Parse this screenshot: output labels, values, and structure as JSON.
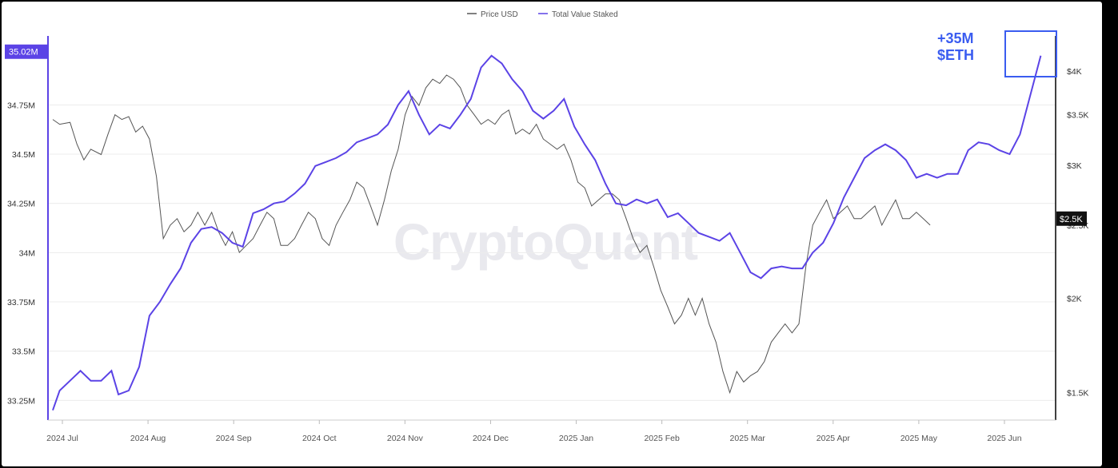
{
  "chart_data": {
    "type": "line",
    "watermark": "CryptoQuant",
    "legend": [
      {
        "name": "Price USD",
        "color": "#555555"
      },
      {
        "name": "Total Value Staked",
        "color": "#5b43e6"
      }
    ],
    "annotation": {
      "line1": "+35M",
      "line2": "$ETH",
      "color": "#3a5cf0"
    },
    "x_ticks": [
      "2024 Jul",
      "2024 Aug",
      "2024 Sep",
      "2024 Oct",
      "2024 Nov",
      "2024 Dec",
      "2025 Jan",
      "2025 Feb",
      "2025 Mar",
      "2025 Apr",
      "2025 May",
      "2025 Jun"
    ],
    "left_axis": {
      "label_ticks": [
        "34.75M",
        "34.5M",
        "34.25M",
        "34M",
        "33.75M",
        "33.5M",
        "33.25M"
      ],
      "tick_values": [
        34.75,
        34.5,
        34.25,
        34.0,
        33.75,
        33.5,
        33.25
      ],
      "ylim": [
        33.15,
        35.1
      ],
      "current_label": "35.02M",
      "current_value": 35.02,
      "color": "#5b43e6"
    },
    "right_axis": {
      "label_ticks": [
        "$4K",
        "$3.5K",
        "$3K",
        "$2.5K",
        "$2K",
        "$1.5K"
      ],
      "tick_values": [
        4000,
        3500,
        3000,
        2500,
        2000,
        1500
      ],
      "log_scale": true,
      "ylim": [
        1380,
        4450
      ],
      "current_label": "$2.5K",
      "current_value": 2550
    },
    "grid": true,
    "series": [
      {
        "name": "Total Value Staked",
        "axis": "left",
        "color": "#5b43e6",
        "points": [
          [
            0,
            33.2
          ],
          [
            2,
            33.3
          ],
          [
            5,
            33.35
          ],
          [
            8,
            33.4
          ],
          [
            11,
            33.35
          ],
          [
            14,
            33.35
          ],
          [
            17,
            33.4
          ],
          [
            19,
            33.28
          ],
          [
            22,
            33.3
          ],
          [
            25,
            33.42
          ],
          [
            28,
            33.68
          ],
          [
            31,
            33.75
          ],
          [
            34,
            33.84
          ],
          [
            37,
            33.92
          ],
          [
            40,
            34.05
          ],
          [
            43,
            34.12
          ],
          [
            46,
            34.13
          ],
          [
            49,
            34.1
          ],
          [
            52,
            34.05
          ],
          [
            55,
            34.03
          ],
          [
            58,
            34.2
          ],
          [
            61,
            34.22
          ],
          [
            64,
            34.25
          ],
          [
            67,
            34.26
          ],
          [
            70,
            34.3
          ],
          [
            73,
            34.35
          ],
          [
            76,
            34.44
          ],
          [
            79,
            34.46
          ],
          [
            82,
            34.48
          ],
          [
            85,
            34.51
          ],
          [
            88,
            34.56
          ],
          [
            91,
            34.58
          ],
          [
            94,
            34.6
          ],
          [
            97,
            34.65
          ],
          [
            100,
            34.75
          ],
          [
            103,
            34.82
          ],
          [
            106,
            34.7
          ],
          [
            109,
            34.6
          ],
          [
            112,
            34.65
          ],
          [
            115,
            34.63
          ],
          [
            118,
            34.7
          ],
          [
            121,
            34.78
          ],
          [
            124,
            34.94
          ],
          [
            127,
            35.0
          ],
          [
            130,
            34.96
          ],
          [
            133,
            34.88
          ],
          [
            136,
            34.82
          ],
          [
            139,
            34.72
          ],
          [
            142,
            34.68
          ],
          [
            145,
            34.72
          ],
          [
            148,
            34.78
          ],
          [
            151,
            34.64
          ],
          [
            154,
            34.55
          ],
          [
            157,
            34.47
          ],
          [
            160,
            34.35
          ],
          [
            163,
            34.25
          ],
          [
            166,
            34.24
          ],
          [
            169,
            34.27
          ],
          [
            172,
            34.25
          ],
          [
            175,
            34.27
          ],
          [
            178,
            34.18
          ],
          [
            181,
            34.2
          ],
          [
            184,
            34.15
          ],
          [
            187,
            34.1
          ],
          [
            190,
            34.08
          ],
          [
            193,
            34.06
          ],
          [
            196,
            34.1
          ],
          [
            199,
            34.0
          ],
          [
            202,
            33.9
          ],
          [
            205,
            33.87
          ],
          [
            208,
            33.92
          ],
          [
            211,
            33.93
          ],
          [
            214,
            33.92
          ],
          [
            217,
            33.92
          ],
          [
            220,
            34.0
          ],
          [
            223,
            34.05
          ],
          [
            226,
            34.15
          ],
          [
            229,
            34.28
          ],
          [
            232,
            34.38
          ],
          [
            235,
            34.48
          ],
          [
            238,
            34.52
          ],
          [
            241,
            34.55
          ],
          [
            244,
            34.52
          ],
          [
            247,
            34.47
          ],
          [
            250,
            34.38
          ],
          [
            253,
            34.4
          ],
          [
            256,
            34.38
          ],
          [
            259,
            34.4
          ],
          [
            262,
            34.4
          ],
          [
            265,
            34.52
          ],
          [
            268,
            34.56
          ],
          [
            271,
            34.55
          ],
          [
            274,
            34.52
          ],
          [
            277,
            34.5
          ],
          [
            280,
            34.6
          ],
          [
            283,
            34.8
          ],
          [
            286,
            35.0
          ]
        ]
      },
      {
        "name": "Price USD",
        "axis": "right",
        "color": "#555555",
        "points": [
          [
            0,
            3450
          ],
          [
            2,
            3400
          ],
          [
            5,
            3420
          ],
          [
            7,
            3200
          ],
          [
            9,
            3050
          ],
          [
            11,
            3150
          ],
          [
            14,
            3100
          ],
          [
            16,
            3300
          ],
          [
            18,
            3500
          ],
          [
            20,
            3450
          ],
          [
            22,
            3480
          ],
          [
            24,
            3320
          ],
          [
            26,
            3380
          ],
          [
            28,
            3250
          ],
          [
            30,
            2900
          ],
          [
            32,
            2400
          ],
          [
            34,
            2500
          ],
          [
            36,
            2550
          ],
          [
            38,
            2450
          ],
          [
            40,
            2500
          ],
          [
            42,
            2600
          ],
          [
            44,
            2500
          ],
          [
            46,
            2600
          ],
          [
            48,
            2450
          ],
          [
            50,
            2350
          ],
          [
            52,
            2450
          ],
          [
            54,
            2300
          ],
          [
            56,
            2350
          ],
          [
            58,
            2400
          ],
          [
            60,
            2500
          ],
          [
            62,
            2600
          ],
          [
            64,
            2550
          ],
          [
            66,
            2350
          ],
          [
            68,
            2350
          ],
          [
            70,
            2400
          ],
          [
            72,
            2500
          ],
          [
            74,
            2600
          ],
          [
            76,
            2550
          ],
          [
            78,
            2400
          ],
          [
            80,
            2350
          ],
          [
            82,
            2500
          ],
          [
            84,
            2600
          ],
          [
            86,
            2700
          ],
          [
            88,
            2850
          ],
          [
            90,
            2800
          ],
          [
            92,
            2650
          ],
          [
            94,
            2500
          ],
          [
            96,
            2700
          ],
          [
            98,
            2950
          ],
          [
            100,
            3150
          ],
          [
            102,
            3500
          ],
          [
            104,
            3700
          ],
          [
            106,
            3600
          ],
          [
            108,
            3800
          ],
          [
            110,
            3900
          ],
          [
            112,
            3850
          ],
          [
            114,
            3950
          ],
          [
            116,
            3900
          ],
          [
            118,
            3800
          ],
          [
            120,
            3600
          ],
          [
            122,
            3500
          ],
          [
            124,
            3400
          ],
          [
            126,
            3450
          ],
          [
            128,
            3400
          ],
          [
            130,
            3500
          ],
          [
            132,
            3550
          ],
          [
            134,
            3300
          ],
          [
            136,
            3350
          ],
          [
            138,
            3300
          ],
          [
            140,
            3400
          ],
          [
            142,
            3250
          ],
          [
            144,
            3200
          ],
          [
            146,
            3150
          ],
          [
            148,
            3200
          ],
          [
            150,
            3050
          ],
          [
            152,
            2850
          ],
          [
            154,
            2800
          ],
          [
            156,
            2650
          ],
          [
            158,
            2700
          ],
          [
            160,
            2750
          ],
          [
            162,
            2750
          ],
          [
            164,
            2700
          ],
          [
            166,
            2550
          ],
          [
            168,
            2400
          ],
          [
            170,
            2300
          ],
          [
            172,
            2350
          ],
          [
            174,
            2200
          ],
          [
            176,
            2050
          ],
          [
            178,
            1950
          ],
          [
            180,
            1850
          ],
          [
            182,
            1900
          ],
          [
            184,
            2000
          ],
          [
            186,
            1900
          ],
          [
            188,
            2000
          ],
          [
            190,
            1850
          ],
          [
            192,
            1750
          ],
          [
            194,
            1600
          ],
          [
            196,
            1500
          ],
          [
            198,
            1600
          ],
          [
            200,
            1550
          ],
          [
            202,
            1580
          ],
          [
            204,
            1600
          ],
          [
            206,
            1650
          ],
          [
            208,
            1750
          ],
          [
            210,
            1800
          ],
          [
            212,
            1850
          ],
          [
            214,
            1800
          ],
          [
            216,
            1850
          ],
          [
            218,
            2200
          ],
          [
            220,
            2500
          ],
          [
            222,
            2600
          ],
          [
            224,
            2700
          ],
          [
            226,
            2550
          ],
          [
            228,
            2600
          ],
          [
            230,
            2650
          ],
          [
            232,
            2550
          ],
          [
            234,
            2550
          ],
          [
            236,
            2600
          ],
          [
            238,
            2650
          ],
          [
            240,
            2500
          ],
          [
            242,
            2600
          ],
          [
            244,
            2700
          ],
          [
            246,
            2550
          ],
          [
            248,
            2550
          ],
          [
            250,
            2600
          ],
          [
            252,
            2550
          ],
          [
            254,
            2500
          ]
        ]
      }
    ]
  }
}
